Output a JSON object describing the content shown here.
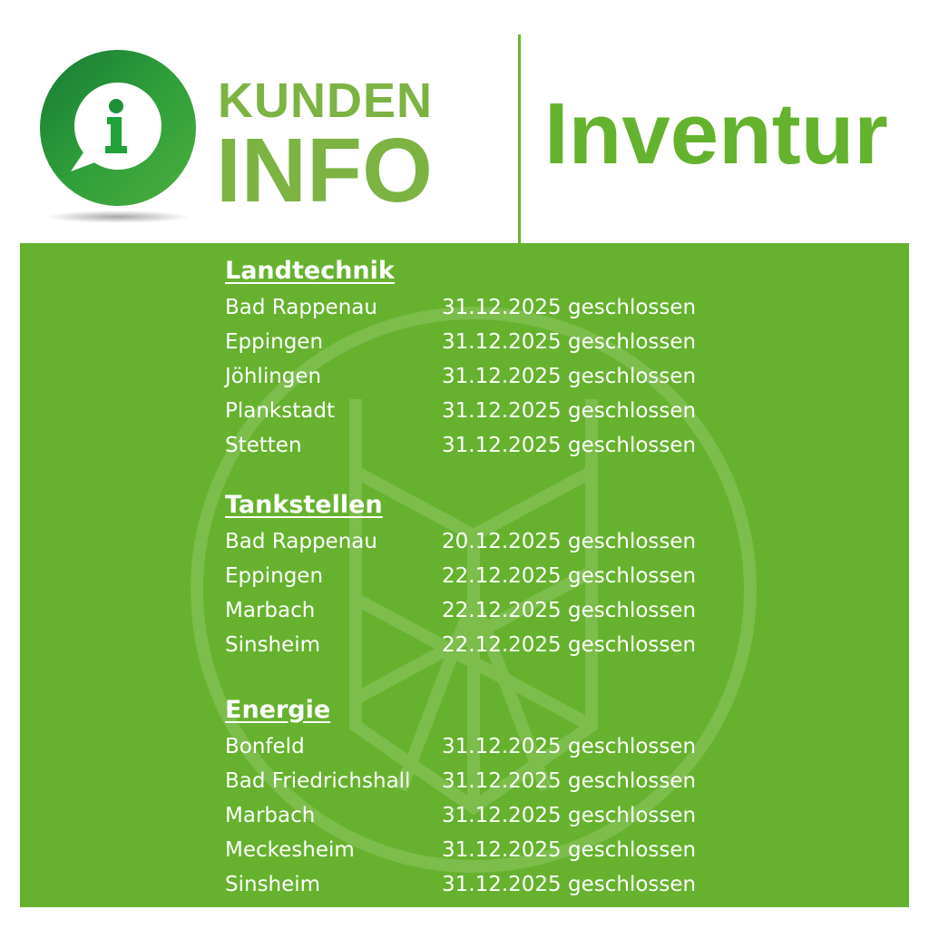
{
  "header": {
    "logo_line1": "KUNDEN",
    "logo_line2": "INFO",
    "logo_icon": "info-speech-bubble-icon",
    "title": "Inventur"
  },
  "colors": {
    "panel": "#66b22e",
    "logo_text": "#7cb342",
    "title": "#64b22d",
    "logo_ring": "#2e9e3a"
  },
  "sections": [
    {
      "heading": "Landtechnik",
      "rows": [
        {
          "location": "Bad Rappenau",
          "status": "31.12.2025 geschlossen"
        },
        {
          "location": "Eppingen",
          "status": "31.12.2025 geschlossen"
        },
        {
          "location": "Jöhlingen",
          "status": "31.12.2025 geschlossen"
        },
        {
          "location": "Plankstadt",
          "status": "31.12.2025 geschlossen"
        },
        {
          "location": "Stetten",
          "status": "31.12.2025 geschlossen"
        }
      ]
    },
    {
      "heading": "Tankstellen",
      "rows": [
        {
          "location": "Bad Rappenau",
          "status": "20.12.2025 geschlossen"
        },
        {
          "location": "Eppingen",
          "status": "22.12.2025 geschlossen"
        },
        {
          "location": "Marbach",
          "status": "22.12.2025 geschlossen"
        },
        {
          "location": "Sinsheim",
          "status": "22.12.2025 geschlossen"
        }
      ]
    },
    {
      "heading": "Energie",
      "rows": [
        {
          "location": "Bonfeld",
          "status": "31.12.2025 geschlossen"
        },
        {
          "location": "Bad Friedrichshall",
          "status": "31.12.2025 geschlossen"
        },
        {
          "location": "Marbach",
          "status": "31.12.2025 geschlossen"
        },
        {
          "location": "Meckesheim",
          "status": "31.12.2025 geschlossen"
        },
        {
          "location": "Sinsheim",
          "status": "31.12.2025 geschlossen"
        }
      ]
    }
  ]
}
